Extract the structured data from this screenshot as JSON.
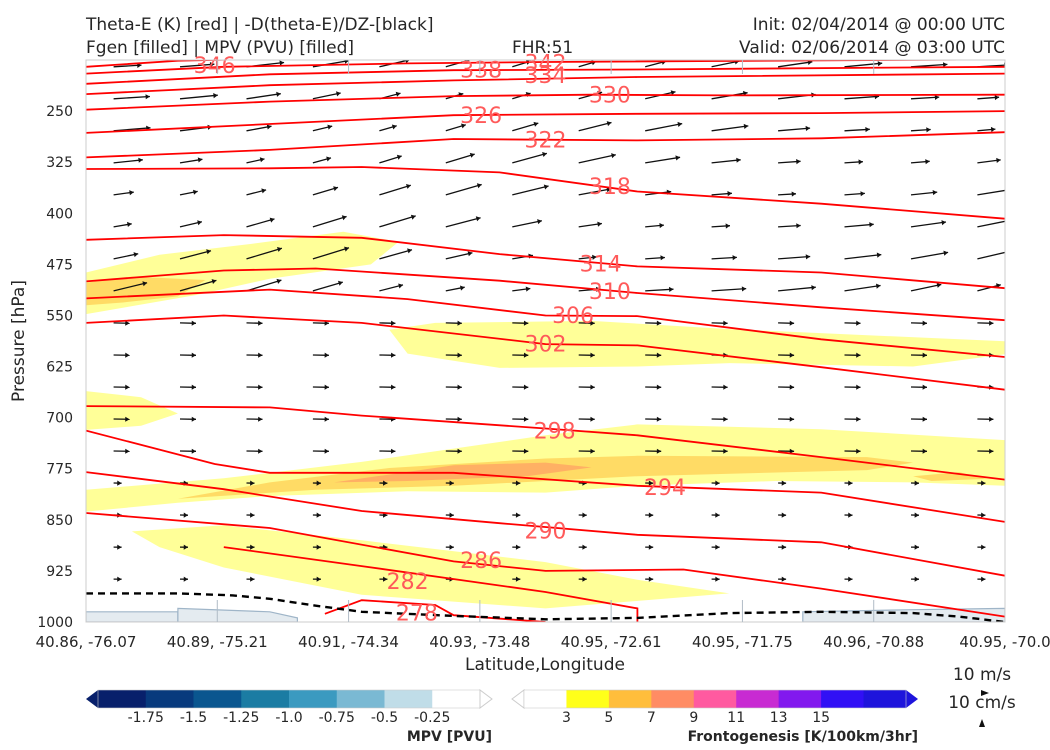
{
  "header": {
    "title_line1": "Theta-E (K) [red] | -D(theta-E)/DZ-[black]",
    "title_line2": "Fgen [filled] | MPV (PVU) [filled]",
    "fhr": "FHR:51",
    "init": "Init: 02/04/2014 @ 00:00 UTC",
    "valid": "Valid: 02/06/2014 @ 03:00 UTC"
  },
  "chart_data": {
    "type": "cross-section",
    "xlabel": "Latitude,Longitude",
    "ylabel": "Pressure [hPa]",
    "x_ticks": [
      "40.86, -76.07",
      "40.89, -75.21",
      "40.91, -74.34",
      "40.93, -73.48",
      "40.95, -72.61",
      "40.95, -71.75",
      "40.96, -70.88",
      "40.95, -70.0"
    ],
    "y_ticks": [
      250,
      325,
      400,
      475,
      550,
      625,
      700,
      775,
      850,
      925,
      1000
    ],
    "ylim": [
      1000,
      175
    ],
    "grid": false,
    "theta_e_color": "#ff0000",
    "theta_e_label_color": "#ff5a5a",
    "theta_e_contours": [
      {
        "value": 346,
        "points": [
          [
            0,
            185
          ],
          [
            0.1,
            176
          ],
          [
            0.3,
            170
          ],
          [
            1,
            168
          ]
        ]
      },
      {
        "value": 342,
        "points": [
          [
            0,
            195
          ],
          [
            0.15,
            185
          ],
          [
            0.35,
            180
          ],
          [
            0.5,
            178
          ],
          [
            1,
            174
          ]
        ]
      },
      {
        "value": 338,
        "points": [
          [
            0,
            210
          ],
          [
            0.2,
            196
          ],
          [
            0.4,
            190
          ],
          [
            0.6,
            189
          ],
          [
            1,
            185
          ]
        ]
      },
      {
        "value": 334,
        "points": [
          [
            0,
            225
          ],
          [
            0.2,
            212
          ],
          [
            0.4,
            205
          ],
          [
            0.6,
            200
          ],
          [
            1,
            195
          ]
        ]
      },
      {
        "value": 330,
        "points": [
          [
            0,
            248
          ],
          [
            0.2,
            236
          ],
          [
            0.4,
            228
          ],
          [
            0.55,
            226
          ],
          [
            0.7,
            227
          ],
          [
            1,
            226
          ]
        ]
      },
      {
        "value": 326,
        "points": [
          [
            0,
            282
          ],
          [
            0.2,
            269
          ],
          [
            0.4,
            256
          ],
          [
            0.6,
            254
          ],
          [
            0.8,
            253
          ],
          [
            1,
            250
          ]
        ]
      },
      {
        "value": 322,
        "points": [
          [
            0,
            318
          ],
          [
            0.2,
            307
          ],
          [
            0.4,
            291
          ],
          [
            0.6,
            293
          ],
          [
            0.8,
            290
          ],
          [
            1,
            281
          ]
        ]
      },
      {
        "value": 318,
        "points": [
          [
            0,
            335
          ],
          [
            0.2,
            334
          ],
          [
            0.3,
            332
          ],
          [
            0.45,
            340
          ],
          [
            0.6,
            368
          ],
          [
            0.8,
            386
          ],
          [
            1,
            408
          ]
        ]
      },
      {
        "value": 314,
        "points": [
          [
            0,
            439
          ],
          [
            0.15,
            432
          ],
          [
            0.3,
            436
          ],
          [
            0.45,
            460
          ],
          [
            0.6,
            478
          ],
          [
            0.8,
            487
          ],
          [
            1,
            510
          ]
        ]
      },
      {
        "value": 310,
        "points": [
          [
            0,
            500
          ],
          [
            0.15,
            484
          ],
          [
            0.25,
            481
          ],
          [
            0.45,
            499
          ],
          [
            0.6,
            517
          ],
          [
            0.8,
            538
          ],
          [
            1,
            557
          ]
        ]
      },
      {
        "value": 306,
        "points": [
          [
            0,
            525
          ],
          [
            0.2,
            512
          ],
          [
            0.35,
            526
          ],
          [
            0.5,
            550
          ],
          [
            0.6,
            551
          ],
          [
            0.8,
            585
          ],
          [
            1,
            611
          ]
        ]
      },
      {
        "value": 302,
        "points": [
          [
            0,
            561
          ],
          [
            0.15,
            550
          ],
          [
            0.3,
            561
          ],
          [
            0.5,
            592
          ],
          [
            0.6,
            594
          ],
          [
            0.8,
            626
          ],
          [
            1,
            659
          ]
        ]
      },
      {
        "value": 298,
        "points": [
          [
            0,
            683
          ],
          [
            0.2,
            685
          ],
          [
            0.3,
            697
          ],
          [
            0.5,
            716
          ],
          [
            0.6,
            726
          ],
          [
            0.8,
            758
          ],
          [
            1,
            791
          ]
        ]
      },
      {
        "value": 294,
        "points": [
          [
            0,
            719
          ],
          [
            0.14,
            768
          ],
          [
            0.2,
            781
          ],
          [
            0.4,
            781
          ],
          [
            0.6,
            800
          ],
          [
            0.8,
            810
          ],
          [
            1,
            853
          ]
        ]
      },
      {
        "value": 290,
        "points": [
          [
            0,
            780
          ],
          [
            0.15,
            805
          ],
          [
            0.3,
            837
          ],
          [
            0.45,
            855
          ],
          [
            0.6,
            872
          ],
          [
            0.8,
            883
          ],
          [
            1,
            932
          ]
        ]
      },
      {
        "value": 286,
        "points": [
          [
            0,
            840
          ],
          [
            0.2,
            862
          ],
          [
            0.4,
            911
          ],
          [
            0.5,
            925
          ],
          [
            0.65,
            923
          ],
          [
            0.8,
            951
          ],
          [
            1,
            992
          ]
        ]
      },
      {
        "value": 282,
        "points": [
          [
            0.15,
            890
          ],
          [
            0.3,
            918
          ],
          [
            0.5,
            956
          ],
          [
            0.6,
            980
          ],
          [
            0.6,
            1000
          ]
        ]
      },
      {
        "value": 278,
        "points": [
          [
            0.26,
            988
          ],
          [
            0.3,
            968
          ],
          [
            0.38,
            975
          ],
          [
            0.4,
            990
          ],
          [
            0.5,
            1000
          ]
        ]
      }
    ],
    "theta_e_labels": [
      {
        "value": "346",
        "x": 0.14,
        "p": 182
      },
      {
        "value": "342",
        "x": 0.5,
        "p": 179
      },
      {
        "value": "338",
        "x": 0.43,
        "p": 189
      },
      {
        "value": "334",
        "x": 0.5,
        "p": 197
      },
      {
        "value": "330",
        "x": 0.57,
        "p": 226
      },
      {
        "value": "326",
        "x": 0.43,
        "p": 256
      },
      {
        "value": "322",
        "x": 0.5,
        "p": 292
      },
      {
        "value": "318",
        "x": 0.57,
        "p": 360
      },
      {
        "value": "314",
        "x": 0.56,
        "p": 474
      },
      {
        "value": "310",
        "x": 0.57,
        "p": 514
      },
      {
        "value": "306",
        "x": 0.53,
        "p": 549
      },
      {
        "value": "302",
        "x": 0.5,
        "p": 591
      },
      {
        "value": "298",
        "x": 0.51,
        "p": 719
      },
      {
        "value": "294",
        "x": 0.63,
        "p": 802
      },
      {
        "value": "290",
        "x": 0.5,
        "p": 866
      },
      {
        "value": "286",
        "x": 0.43,
        "p": 909
      },
      {
        "value": "282",
        "x": 0.35,
        "p": 940
      },
      {
        "value": "278",
        "x": 0.36,
        "p": 986
      }
    ],
    "dthetae_dz_zero_contour": [
      [
        0,
        958
      ],
      [
        0.1,
        958
      ],
      [
        0.16,
        961
      ],
      [
        0.2,
        966
      ],
      [
        0.25,
        976
      ],
      [
        0.3,
        985
      ],
      [
        0.4,
        991
      ],
      [
        0.5,
        996
      ],
      [
        0.6,
        994
      ],
      [
        0.7,
        987
      ],
      [
        0.8,
        985
      ],
      [
        0.9,
        987
      ],
      [
        0.95,
        992
      ],
      [
        1,
        1000
      ]
    ],
    "frontogenesis_regions": [
      {
        "level": 3,
        "points": [
          [
            0,
            487
          ],
          [
            0.08,
            461
          ],
          [
            0.18,
            445
          ],
          [
            0.28,
            427
          ],
          [
            0.34,
            442
          ],
          [
            0.31,
            475
          ],
          [
            0.2,
            496
          ],
          [
            0.12,
            520
          ],
          [
            0,
            548
          ]
        ]
      },
      {
        "level": 5,
        "points": [
          [
            0,
            502
          ],
          [
            0.05,
            493
          ],
          [
            0.13,
            498
          ],
          [
            0.1,
            522
          ],
          [
            0.04,
            531
          ],
          [
            0,
            535
          ]
        ]
      },
      {
        "level": 3,
        "points": [
          [
            0,
            661
          ],
          [
            0.06,
            670
          ],
          [
            0.1,
            694
          ],
          [
            0.06,
            712
          ],
          [
            0,
            718
          ]
        ]
      },
      {
        "level": 3,
        "points": [
          [
            0.33,
            571
          ],
          [
            0.38,
            561
          ],
          [
            0.55,
            558
          ],
          [
            0.7,
            570
          ],
          [
            1,
            588
          ],
          [
            1,
            607
          ],
          [
            0.9,
            625
          ],
          [
            0.7,
            620
          ],
          [
            0.6,
            625
          ],
          [
            0.45,
            627
          ],
          [
            0.35,
            606
          ]
        ]
      },
      {
        "level": 3,
        "points": [
          [
            0,
            806
          ],
          [
            0.15,
            789
          ],
          [
            0.3,
            765
          ],
          [
            0.5,
            726
          ],
          [
            0.6,
            710
          ],
          [
            0.8,
            717
          ],
          [
            1,
            733
          ],
          [
            1,
            800
          ],
          [
            0.9,
            795
          ],
          [
            0.75,
            793
          ],
          [
            0.6,
            800
          ],
          [
            0.5,
            810
          ],
          [
            0.35,
            808
          ],
          [
            0.2,
            815
          ],
          [
            0.1,
            825
          ],
          [
            0,
            838
          ]
        ]
      },
      {
        "level": 5,
        "points": [
          [
            0.1,
            819
          ],
          [
            0.2,
            795
          ],
          [
            0.33,
            774
          ],
          [
            0.5,
            760
          ],
          [
            0.6,
            756
          ],
          [
            0.85,
            758
          ],
          [
            0.9,
            766
          ],
          [
            0.85,
            777
          ],
          [
            0.6,
            786
          ],
          [
            0.4,
            800
          ],
          [
            0.25,
            806
          ]
        ]
      },
      {
        "level": 7,
        "points": [
          [
            0.27,
            795
          ],
          [
            0.4,
            770
          ],
          [
            0.5,
            766
          ],
          [
            0.55,
            773
          ],
          [
            0.48,
            786
          ],
          [
            0.35,
            793
          ]
        ]
      },
      {
        "level": 5,
        "points": [
          [
            0.9,
            786
          ],
          [
            0.95,
            780
          ],
          [
            0.98,
            790
          ],
          [
            0.92,
            793
          ]
        ]
      },
      {
        "level": 3,
        "points": [
          [
            0.05,
            867
          ],
          [
            0.15,
            858
          ],
          [
            0.3,
            880
          ],
          [
            0.5,
            912
          ],
          [
            0.6,
            938
          ],
          [
            0.7,
            958
          ],
          [
            0.5,
            980
          ],
          [
            0.3,
            960
          ],
          [
            0.15,
            920
          ],
          [
            0.08,
            890
          ]
        ]
      }
    ],
    "topography": [
      {
        "points": [
          [
            0,
            1000
          ],
          [
            0,
            985
          ],
          [
            0.1,
            985
          ],
          [
            0.1,
            1000
          ]
        ]
      },
      {
        "points": [
          [
            0.1,
            1000
          ],
          [
            0.1,
            980
          ],
          [
            0.2,
            985
          ],
          [
            0.23,
            994
          ],
          [
            0.23,
            1000
          ]
        ]
      },
      {
        "points": [
          [
            0.78,
            1000
          ],
          [
            0.78,
            985
          ],
          [
            0.9,
            982
          ],
          [
            1,
            980
          ],
          [
            1,
            1000
          ]
        ]
      }
    ],
    "wind_barbs_note": "vectors",
    "mpv_colorbar": {
      "label": "MPV [PVU]",
      "ticks": [
        "-1.75",
        "-1.5",
        "-1.25",
        "-1.0",
        "-0.75",
        "-0.5",
        "-0.25"
      ],
      "colors": [
        "#08206b",
        "#083a7d",
        "#0a568f",
        "#1b7ca3",
        "#3b9ac0",
        "#7ab9d3",
        "#c0dde8",
        "#ffffff"
      ]
    },
    "fgen_colorbar": {
      "label": "Frontogenesis [K/100km/3hr]",
      "ticks": [
        "3",
        "5",
        "7",
        "9",
        "11",
        "13",
        "15"
      ],
      "colors": [
        "#ffffff",
        "#ffff1a",
        "#ffbe3c",
        "#ff8c64",
        "#ff5aa0",
        "#c82bd2",
        "#8219ee",
        "#3110f5",
        "#1e14dc"
      ]
    },
    "vector_key": {
      "line1": "10 m/s",
      "line2": "10 cm/s"
    }
  }
}
